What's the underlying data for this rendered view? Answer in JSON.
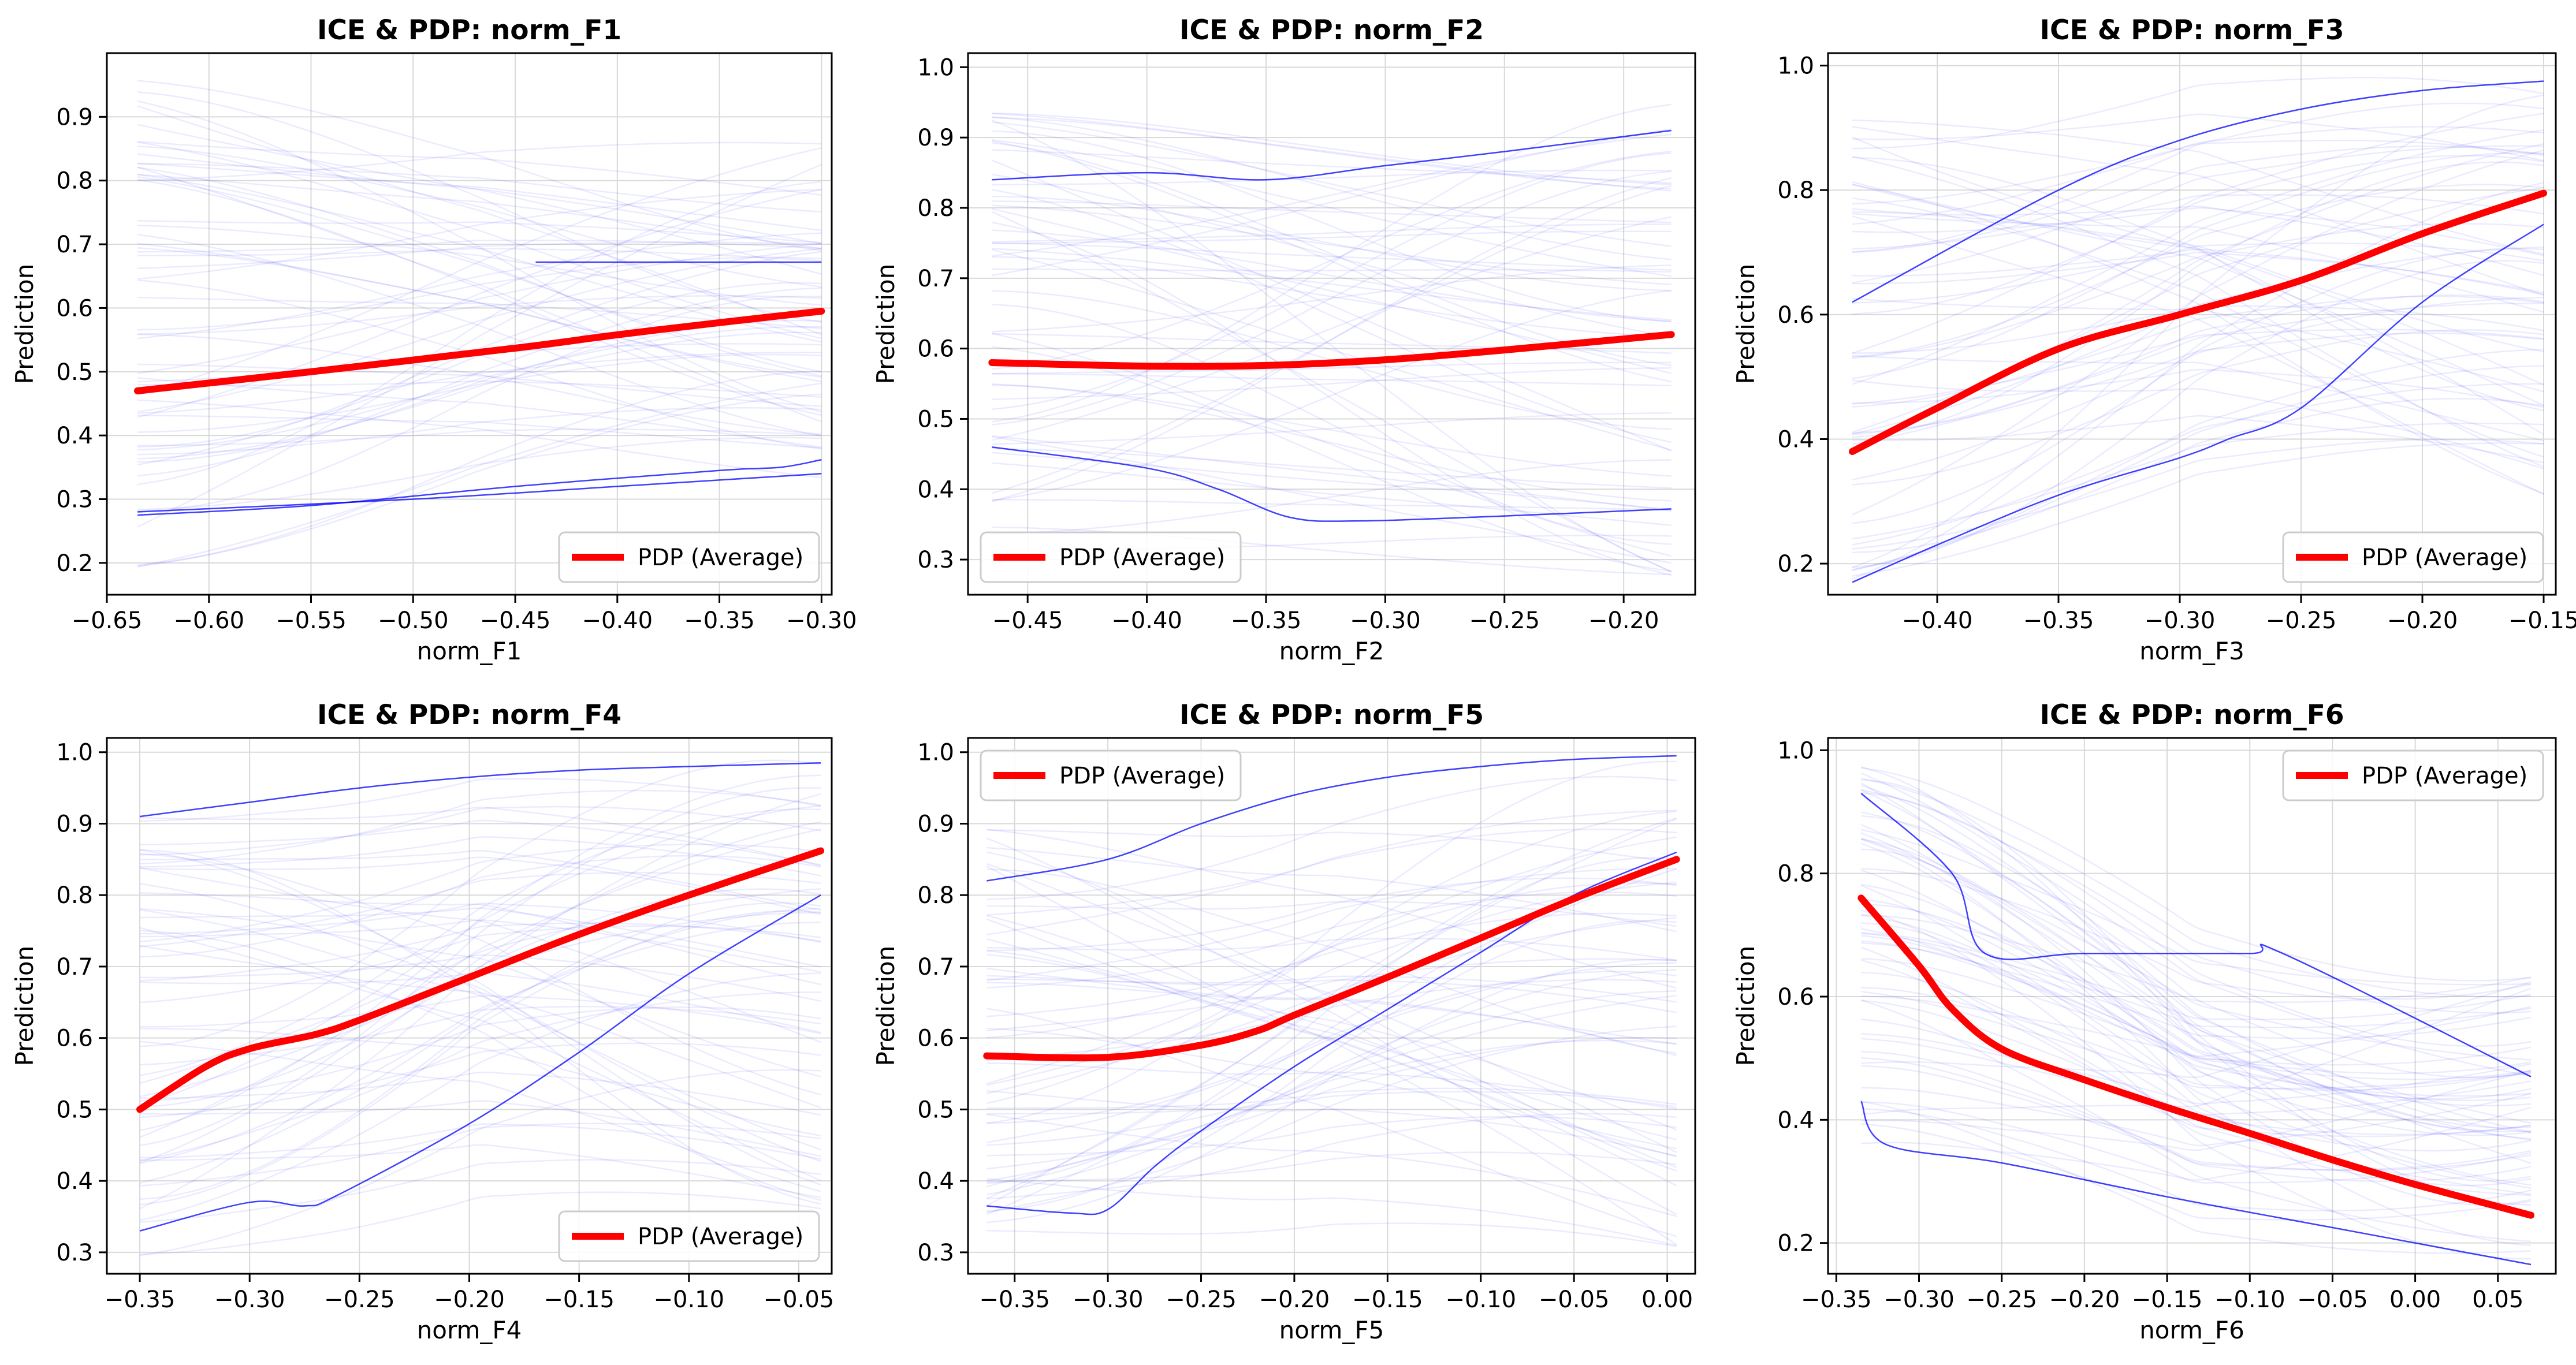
{
  "figure": {
    "panels": [
      {
        "title": "ICE & PDP: norm_F1",
        "xlabel": "norm_F1",
        "ylabel": "Prediction",
        "legend_label": "PDP (Average)",
        "legend_loc": "lower-right"
      },
      {
        "title": "ICE & PDP: norm_F2",
        "xlabel": "norm_F2",
        "ylabel": "Prediction",
        "legend_label": "PDP (Average)",
        "legend_loc": "lower-left"
      },
      {
        "title": "ICE & PDP: norm_F3",
        "xlabel": "norm_F3",
        "ylabel": "Prediction",
        "legend_label": "PDP (Average)",
        "legend_loc": "lower-right"
      },
      {
        "title": "ICE & PDP: norm_F4",
        "xlabel": "norm_F4",
        "ylabel": "Prediction",
        "legend_label": "PDP (Average)",
        "legend_loc": "lower-right"
      },
      {
        "title": "ICE & PDP: norm_F5",
        "xlabel": "norm_F5",
        "ylabel": "Prediction",
        "legend_label": "PDP (Average)",
        "legend_loc": "upper-left"
      },
      {
        "title": "ICE & PDP: norm_F6",
        "xlabel": "norm_F6",
        "ylabel": "Prediction",
        "legend_label": "PDP (Average)",
        "legend_loc": "upper-right"
      }
    ]
  },
  "colors": {
    "pdp": "#ff0000",
    "ice": "#0000ff",
    "grid": "#d9d9d9",
    "axis": "#000000"
  },
  "chart_data": [
    {
      "type": "line",
      "title": "ICE & PDP: norm_F1",
      "xlabel": "norm_F1",
      "ylabel": "Prediction",
      "xlim": [
        -0.65,
        -0.295
      ],
      "ylim": [
        0.15,
        1.0
      ],
      "xticks": [
        -0.65,
        -0.6,
        -0.55,
        -0.5,
        -0.45,
        -0.4,
        -0.35,
        -0.3
      ],
      "xticklabels": [
        "−0.65",
        "−0.60",
        "−0.55",
        "−0.50",
        "−0.45",
        "−0.40",
        "−0.35",
        "−0.30"
      ],
      "yticks": [
        0.2,
        0.3,
        0.4,
        0.5,
        0.6,
        0.7,
        0.8,
        0.9
      ],
      "yticklabels": [
        "0.2",
        "0.3",
        "0.4",
        "0.5",
        "0.6",
        "0.7",
        "0.8",
        "0.9"
      ],
      "grid": true,
      "legend_loc": "lower-right",
      "series": [
        {
          "name": "PDP (Average)",
          "x": [
            -0.635,
            -0.55,
            -0.45,
            -0.4,
            -0.35,
            -0.3
          ],
          "y": [
            0.47,
            0.5,
            0.537,
            0.558,
            0.577,
            0.595
          ]
        },
        {
          "x": [
            -0.635,
            -0.55,
            -0.45,
            -0.35,
            -0.32,
            -0.3
          ],
          "y": [
            0.275,
            0.29,
            0.32,
            0.345,
            0.35,
            0.362
          ]
        },
        {
          "x": [
            -0.635,
            -0.5,
            -0.4,
            -0.3
          ],
          "y": [
            0.28,
            0.3,
            0.32,
            0.34
          ]
        },
        {
          "x": [
            -0.44,
            -0.4,
            -0.35,
            -0.3
          ],
          "y": [
            0.672,
            0.672,
            0.672,
            0.672
          ]
        }
      ],
      "ice_envelope": {
        "x": [
          -0.635,
          -0.3
        ],
        "y_start": [
          0.19,
          0.96
        ],
        "y_end": [
          0.33,
          0.86
        ]
      }
    },
    {
      "type": "line",
      "title": "ICE & PDP: norm_F2",
      "xlabel": "norm_F2",
      "ylabel": "Prediction",
      "xlim": [
        -0.475,
        -0.17
      ],
      "ylim": [
        0.25,
        1.02
      ],
      "xticks": [
        -0.45,
        -0.4,
        -0.35,
        -0.3,
        -0.25,
        -0.2
      ],
      "xticklabels": [
        "−0.45",
        "−0.40",
        "−0.35",
        "−0.30",
        "−0.25",
        "−0.20"
      ],
      "yticks": [
        0.3,
        0.4,
        0.5,
        0.6,
        0.7,
        0.8,
        0.9,
        1.0
      ],
      "yticklabels": [
        "0.3",
        "0.4",
        "0.5",
        "0.6",
        "0.7",
        "0.8",
        "0.9",
        "1.0"
      ],
      "grid": true,
      "legend_loc": "lower-left",
      "series": [
        {
          "name": "PDP (Average)",
          "x": [
            -0.465,
            -0.4,
            -0.35,
            -0.3,
            -0.25,
            -0.18
          ],
          "y": [
            0.58,
            0.575,
            0.576,
            0.584,
            0.598,
            0.62
          ]
        },
        {
          "x": [
            -0.465,
            -0.4,
            -0.37,
            -0.34,
            -0.31,
            -0.25,
            -0.18
          ],
          "y": [
            0.46,
            0.43,
            0.4,
            0.36,
            0.355,
            0.362,
            0.372
          ]
        },
        {
          "x": [
            -0.465,
            -0.4,
            -0.35,
            -0.3,
            -0.25,
            -0.18
          ],
          "y": [
            0.84,
            0.85,
            0.84,
            0.86,
            0.88,
            0.91
          ]
        }
      ],
      "ice_envelope": {
        "x": [
          -0.465,
          -0.18
        ],
        "y_start": [
          0.31,
          0.94
        ],
        "y_end": [
          0.26,
          0.98
        ]
      }
    },
    {
      "type": "line",
      "title": "ICE & PDP: norm_F3",
      "xlabel": "norm_F3",
      "ylabel": "Prediction",
      "xlim": [
        -0.445,
        -0.145
      ],
      "ylim": [
        0.15,
        1.02
      ],
      "xticks": [
        -0.4,
        -0.35,
        -0.3,
        -0.25,
        -0.2,
        -0.15
      ],
      "xticklabels": [
        "−0.40",
        "−0.35",
        "−0.30",
        "−0.25",
        "−0.20",
        "−0.15"
      ],
      "yticks": [
        0.2,
        0.4,
        0.6,
        0.8,
        1.0
      ],
      "yticklabels": [
        "0.2",
        "0.4",
        "0.6",
        "0.8",
        "1.0"
      ],
      "grid": true,
      "legend_loc": "lower-right",
      "series": [
        {
          "name": "PDP (Average)",
          "x": [
            -0.435,
            -0.4,
            -0.35,
            -0.3,
            -0.25,
            -0.2,
            -0.15
          ],
          "y": [
            0.38,
            0.45,
            0.545,
            0.6,
            0.655,
            0.73,
            0.795
          ]
        },
        {
          "x": [
            -0.435,
            -0.4,
            -0.35,
            -0.3,
            -0.28,
            -0.25,
            -0.2,
            -0.15
          ],
          "y": [
            0.17,
            0.23,
            0.31,
            0.37,
            0.4,
            0.45,
            0.62,
            0.745
          ]
        },
        {
          "x": [
            -0.435,
            -0.35,
            -0.3,
            -0.25,
            -0.2,
            -0.15
          ],
          "y": [
            0.62,
            0.8,
            0.88,
            0.93,
            0.96,
            0.975
          ]
        }
      ],
      "ice_envelope": {
        "x": [
          -0.435,
          -0.15
        ],
        "y_start": [
          0.17,
          0.93
        ],
        "y_end": [
          0.3,
          0.98
        ]
      }
    },
    {
      "type": "line",
      "title": "ICE & PDP: norm_F4",
      "xlabel": "norm_F4",
      "ylabel": "Prediction",
      "xlim": [
        -0.365,
        -0.035
      ],
      "ylim": [
        0.27,
        1.02
      ],
      "xticks": [
        -0.35,
        -0.3,
        -0.25,
        -0.2,
        -0.15,
        -0.1,
        -0.05
      ],
      "xticklabels": [
        "−0.35",
        "−0.30",
        "−0.25",
        "−0.20",
        "−0.15",
        "−0.10",
        "−0.05"
      ],
      "yticks": [
        0.3,
        0.4,
        0.5,
        0.6,
        0.7,
        0.8,
        0.9,
        1.0
      ],
      "yticklabels": [
        "0.3",
        "0.4",
        "0.5",
        "0.6",
        "0.7",
        "0.8",
        "0.9",
        "1.0"
      ],
      "grid": true,
      "legend_loc": "lower-right",
      "series": [
        {
          "name": "PDP (Average)",
          "x": [
            -0.35,
            -0.32,
            -0.3,
            -0.27,
            -0.25,
            -0.2,
            -0.15,
            -0.1,
            -0.04
          ],
          "y": [
            0.5,
            0.56,
            0.585,
            0.605,
            0.625,
            0.685,
            0.745,
            0.8,
            0.862
          ]
        },
        {
          "x": [
            -0.35,
            -0.3,
            -0.275,
            -0.26,
            -0.2,
            -0.15,
            -0.1,
            -0.04
          ],
          "y": [
            0.33,
            0.37,
            0.365,
            0.38,
            0.48,
            0.58,
            0.69,
            0.8
          ]
        },
        {
          "x": [
            -0.35,
            -0.3,
            -0.25,
            -0.2,
            -0.15,
            -0.1,
            -0.04
          ],
          "y": [
            0.91,
            0.93,
            0.95,
            0.965,
            0.975,
            0.98,
            0.985
          ]
        }
      ],
      "ice_envelope": {
        "x": [
          -0.35,
          -0.04
        ],
        "y_start": [
          0.29,
          0.91
        ],
        "y_end": [
          0.36,
          0.99
        ]
      }
    },
    {
      "type": "line",
      "title": "ICE & PDP: norm_F5",
      "xlabel": "norm_F5",
      "ylabel": "Prediction",
      "xlim": [
        -0.375,
        0.015
      ],
      "ylim": [
        0.27,
        1.02
      ],
      "xticks": [
        -0.35,
        -0.3,
        -0.25,
        -0.2,
        -0.15,
        -0.1,
        -0.05,
        0.0
      ],
      "xticklabels": [
        "−0.35",
        "−0.30",
        "−0.25",
        "−0.20",
        "−0.15",
        "−0.10",
        "−0.05",
        "0.00"
      ],
      "yticks": [
        0.3,
        0.4,
        0.5,
        0.6,
        0.7,
        0.8,
        0.9,
        1.0
      ],
      "yticklabels": [
        "0.3",
        "0.4",
        "0.5",
        "0.6",
        "0.7",
        "0.8",
        "0.9",
        "1.0"
      ],
      "grid": true,
      "legend_loc": "upper-left",
      "series": [
        {
          "name": "PDP (Average)",
          "x": [
            -0.365,
            -0.3,
            -0.25,
            -0.22,
            -0.2,
            -0.15,
            -0.1,
            -0.05,
            0.005
          ],
          "y": [
            0.575,
            0.573,
            0.59,
            0.61,
            0.632,
            0.685,
            0.74,
            0.795,
            0.85
          ]
        },
        {
          "x": [
            -0.365,
            -0.32,
            -0.3,
            -0.275,
            -0.25,
            -0.2,
            -0.15,
            -0.1,
            -0.05,
            0.005
          ],
          "y": [
            0.365,
            0.355,
            0.36,
            0.42,
            0.47,
            0.56,
            0.64,
            0.72,
            0.8,
            0.86
          ]
        },
        {
          "x": [
            -0.365,
            -0.3,
            -0.25,
            -0.2,
            -0.15,
            -0.1,
            -0.05,
            0.005
          ],
          "y": [
            0.82,
            0.85,
            0.9,
            0.94,
            0.965,
            0.98,
            0.99,
            0.995
          ]
        }
      ],
      "ice_envelope": {
        "x": [
          -0.365,
          0.005
        ],
        "y_start": [
          0.33,
          0.93
        ],
        "y_end": [
          0.3,
          0.99
        ]
      }
    },
    {
      "type": "line",
      "title": "ICE & PDP: norm_F6",
      "xlabel": "norm_F6",
      "ylabel": "Prediction",
      "xlim": [
        -0.355,
        0.085
      ],
      "ylim": [
        0.15,
        1.02
      ],
      "xticks": [
        -0.35,
        -0.3,
        -0.25,
        -0.2,
        -0.15,
        -0.1,
        -0.05,
        0.0,
        0.05
      ],
      "xticklabels": [
        "−0.35",
        "−0.30",
        "−0.25",
        "−0.20",
        "−0.15",
        "−0.10",
        "−0.05",
        "0.00",
        "0.05"
      ],
      "yticks": [
        0.2,
        0.4,
        0.6,
        0.8,
        1.0
      ],
      "yticklabels": [
        "0.2",
        "0.4",
        "0.6",
        "0.8",
        "1.0"
      ],
      "grid": true,
      "legend_loc": "upper-right",
      "series": [
        {
          "name": "PDP (Average)",
          "x": [
            -0.335,
            -0.3,
            -0.28,
            -0.25,
            -0.2,
            -0.15,
            -0.1,
            -0.05,
            0.0,
            0.07
          ],
          "y": [
            0.76,
            0.65,
            0.58,
            0.515,
            0.465,
            0.42,
            0.378,
            0.335,
            0.295,
            0.245
          ]
        },
        {
          "x": [
            -0.335,
            -0.32,
            -0.25,
            -0.15,
            -0.05,
            0.07
          ],
          "y": [
            0.43,
            0.36,
            0.33,
            0.275,
            0.225,
            0.165
          ]
        },
        {
          "x": [
            -0.335,
            -0.28,
            -0.26,
            -0.2,
            -0.1,
            -0.08,
            0.07
          ],
          "y": [
            0.93,
            0.8,
            0.67,
            0.67,
            0.67,
            0.67,
            0.47
          ]
        }
      ],
      "ice_envelope": {
        "x": [
          -0.335,
          0.07
        ],
        "y_start": [
          0.36,
          0.99
        ],
        "y_end": [
          0.17,
          0.65
        ]
      }
    }
  ]
}
